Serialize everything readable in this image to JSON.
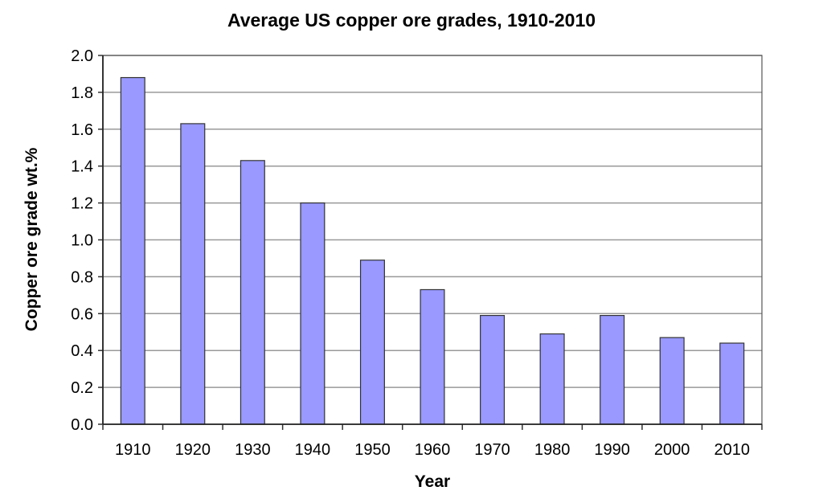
{
  "chart_data": {
    "type": "bar",
    "title": "Average US copper ore grades, 1910-2010",
    "xlabel": "Year",
    "ylabel": "Copper ore grade wt.%",
    "categories": [
      "1910",
      "1920",
      "1930",
      "1940",
      "1950",
      "1960",
      "1970",
      "1980",
      "1990",
      "2000",
      "2010"
    ],
    "values": [
      1.88,
      1.63,
      1.43,
      1.2,
      0.89,
      0.73,
      0.59,
      0.49,
      0.59,
      0.47,
      0.44
    ],
    "ylim": [
      0,
      2.0
    ],
    "yticks": [
      "0.0",
      "0.2",
      "0.4",
      "0.6",
      "0.8",
      "1.0",
      "1.2",
      "1.4",
      "1.6",
      "1.8",
      "2.0"
    ],
    "grid": true,
    "legend": null,
    "bar_color": "#9999ff"
  }
}
